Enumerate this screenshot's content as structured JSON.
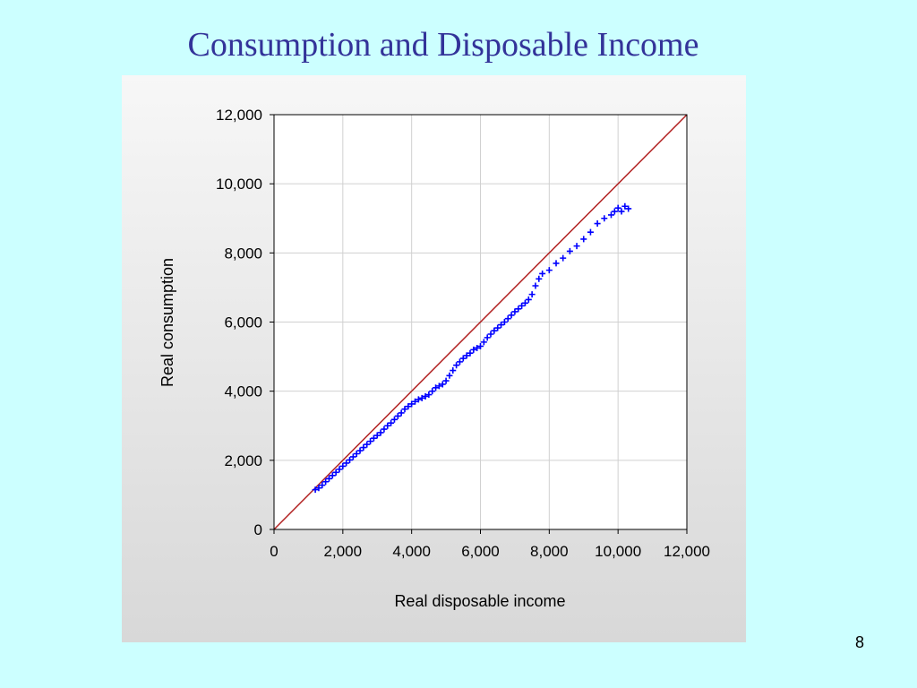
{
  "slide": {
    "title": "Consumption and Disposable Income",
    "page_number": "8"
  },
  "colors": {
    "background": "#ccffff",
    "title": "#333399",
    "series": "#0000ff",
    "reference_line": "#b22222",
    "grid": "#d0d0d0"
  },
  "chart_data": {
    "type": "scatter",
    "xlabel": "Real disposable income",
    "ylabel": "Real consumption",
    "xlim": [
      0,
      12000
    ],
    "ylim": [
      0,
      12000
    ],
    "xticks": [
      "0",
      "2,000",
      "4,000",
      "6,000",
      "8,000",
      "10,000",
      "12,000"
    ],
    "yticks": [
      "0",
      "2,000",
      "4,000",
      "6,000",
      "8,000",
      "10,000",
      "12,000"
    ],
    "grid": true,
    "marker": "+",
    "reference_line": {
      "from": [
        0,
        0
      ],
      "to": [
        12000,
        12000
      ]
    },
    "series": [
      {
        "points": [
          [
            1200,
            1150
          ],
          [
            1300,
            1200
          ],
          [
            1400,
            1280
          ],
          [
            1500,
            1380
          ],
          [
            1600,
            1470
          ],
          [
            1700,
            1560
          ],
          [
            1800,
            1650
          ],
          [
            1900,
            1740
          ],
          [
            2000,
            1830
          ],
          [
            2100,
            1920
          ],
          [
            2200,
            2010
          ],
          [
            2300,
            2100
          ],
          [
            2400,
            2190
          ],
          [
            2500,
            2280
          ],
          [
            2600,
            2370
          ],
          [
            2700,
            2460
          ],
          [
            2800,
            2550
          ],
          [
            2900,
            2640
          ],
          [
            3000,
            2720
          ],
          [
            3100,
            2800
          ],
          [
            3200,
            2900
          ],
          [
            3300,
            3000
          ],
          [
            3400,
            3080
          ],
          [
            3500,
            3180
          ],
          [
            3600,
            3280
          ],
          [
            3700,
            3370
          ],
          [
            3800,
            3480
          ],
          [
            3900,
            3560
          ],
          [
            4000,
            3630
          ],
          [
            4100,
            3700
          ],
          [
            4200,
            3760
          ],
          [
            4300,
            3800
          ],
          [
            4400,
            3850
          ],
          [
            4500,
            3900
          ],
          [
            4600,
            4000
          ],
          [
            4700,
            4100
          ],
          [
            4800,
            4150
          ],
          [
            4900,
            4200
          ],
          [
            5000,
            4300
          ],
          [
            5100,
            4450
          ],
          [
            5200,
            4600
          ],
          [
            5300,
            4750
          ],
          [
            5400,
            4850
          ],
          [
            5500,
            4950
          ],
          [
            5600,
            5030
          ],
          [
            5700,
            5100
          ],
          [
            5800,
            5200
          ],
          [
            5900,
            5250
          ],
          [
            6000,
            5300
          ],
          [
            6100,
            5420
          ],
          [
            6200,
            5550
          ],
          [
            6300,
            5650
          ],
          [
            6400,
            5750
          ],
          [
            6500,
            5830
          ],
          [
            6600,
            5920
          ],
          [
            6700,
            6000
          ],
          [
            6800,
            6100
          ],
          [
            6900,
            6200
          ],
          [
            7000,
            6300
          ],
          [
            7100,
            6380
          ],
          [
            7200,
            6470
          ],
          [
            7300,
            6550
          ],
          [
            7400,
            6650
          ],
          [
            7500,
            6800
          ],
          [
            7600,
            7050
          ],
          [
            7700,
            7250
          ],
          [
            7800,
            7400
          ],
          [
            8000,
            7500
          ],
          [
            8200,
            7700
          ],
          [
            8400,
            7850
          ],
          [
            8600,
            8050
          ],
          [
            8800,
            8200
          ],
          [
            9000,
            8400
          ],
          [
            9200,
            8600
          ],
          [
            9400,
            8850
          ],
          [
            9600,
            9000
          ],
          [
            9800,
            9100
          ],
          [
            9900,
            9200
          ],
          [
            10000,
            9300
          ],
          [
            10100,
            9200
          ],
          [
            10200,
            9350
          ],
          [
            10300,
            9280
          ]
        ]
      }
    ]
  }
}
